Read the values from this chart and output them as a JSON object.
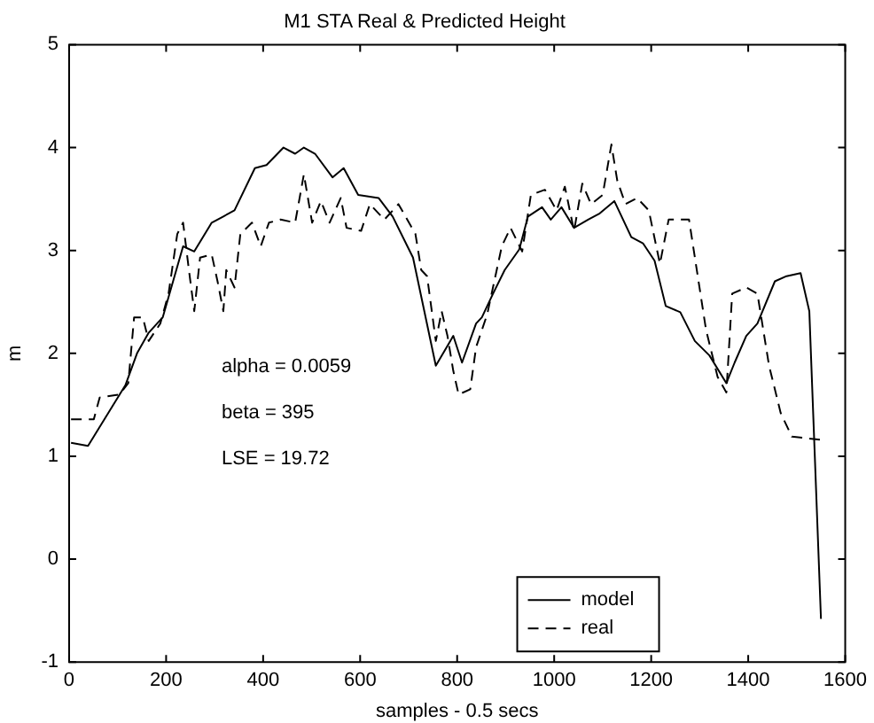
{
  "chart_data": {
    "type": "line",
    "title": "M1 STA Real & Predicted Height",
    "xlabel": "samples - 0.5 secs",
    "ylabel": "m",
    "xlim": [
      0,
      1600
    ],
    "xticks": [
      0,
      200,
      400,
      600,
      800,
      1000,
      1200,
      1400,
      1600
    ],
    "ylim": [
      -1,
      5
    ],
    "yticks": [
      -1,
      0,
      1,
      2,
      3,
      4,
      5
    ],
    "grid": false,
    "legend": "bottom right",
    "marker": "none",
    "annotations": [
      "alpha = 0.0059",
      "beta = 395",
      "LSE = 19.72"
    ],
    "series": [
      {
        "name": "model",
        "color": "#000000",
        "line_style": "solid",
        "x": [
          4,
          39,
          116,
          140,
          164,
          193,
          235,
          258,
          294,
          318,
          341,
          383,
          407,
          442,
          466,
          484,
          507,
          543,
          566,
          596,
          638,
          667,
          709,
          756,
          792,
          810,
          839,
          851,
          874,
          898,
          928,
          946,
          975,
          993,
          1015,
          1041,
          1070,
          1094,
          1124,
          1159,
          1183,
          1207,
          1230,
          1260,
          1290,
          1320,
          1355,
          1372,
          1396,
          1419,
          1455,
          1479,
          1508,
          1526,
          1550
        ],
        "values": [
          1.13,
          1.1,
          1.69,
          2.0,
          2.2,
          2.35,
          3.04,
          2.99,
          3.27,
          3.33,
          3.39,
          3.8,
          3.83,
          4.0,
          3.94,
          4.0,
          3.94,
          3.71,
          3.8,
          3.54,
          3.51,
          3.33,
          2.93,
          1.88,
          2.17,
          1.91,
          2.29,
          2.35,
          2.58,
          2.81,
          3.01,
          3.33,
          3.42,
          3.3,
          3.42,
          3.22,
          3.3,
          3.36,
          3.48,
          3.13,
          3.07,
          2.9,
          2.46,
          2.4,
          2.12,
          1.98,
          1.71,
          1.91,
          2.17,
          2.29,
          2.7,
          2.75,
          2.78,
          2.41,
          -0.58
        ]
      },
      {
        "name": "real",
        "color": "#000000",
        "line_style": "dashed",
        "x": [
          4,
          51,
          63,
          104,
          122,
          134,
          152,
          164,
          188,
          205,
          223,
          235,
          247,
          258,
          270,
          294,
          306,
          318,
          324,
          341,
          353,
          377,
          395,
          412,
          436,
          466,
          484,
          501,
          519,
          537,
          560,
          572,
          602,
          620,
          650,
          679,
          714,
          726,
          738,
          756,
          768,
          780,
          792,
          803,
          827,
          839,
          862,
          892,
          910,
          934,
          952,
          981,
          1005,
          1022,
          1041,
          1058,
          1076,
          1100,
          1118,
          1130,
          1147,
          1171,
          1195,
          1218,
          1236,
          1278,
          1313,
          1337,
          1355,
          1367,
          1396,
          1419,
          1443,
          1467,
          1490,
          1550
        ],
        "values": [
          1.36,
          1.36,
          1.57,
          1.6,
          1.71,
          2.35,
          2.35,
          2.12,
          2.29,
          2.58,
          3.16,
          3.27,
          2.81,
          2.41,
          2.93,
          2.96,
          2.7,
          2.41,
          2.81,
          2.64,
          3.16,
          3.27,
          3.04,
          3.27,
          3.3,
          3.27,
          3.74,
          3.27,
          3.48,
          3.27,
          3.51,
          3.22,
          3.19,
          3.45,
          3.3,
          3.45,
          3.16,
          2.81,
          2.75,
          2.12,
          2.41,
          2.17,
          1.83,
          1.6,
          1.65,
          2.06,
          2.38,
          3.04,
          3.22,
          2.99,
          3.54,
          3.59,
          3.39,
          3.62,
          3.19,
          3.65,
          3.45,
          3.54,
          4.03,
          3.68,
          3.45,
          3.51,
          3.39,
          2.87,
          3.3,
          3.3,
          2.23,
          1.77,
          1.62,
          2.58,
          2.64,
          2.58,
          1.88,
          1.42,
          1.19,
          1.16
        ]
      }
    ]
  }
}
